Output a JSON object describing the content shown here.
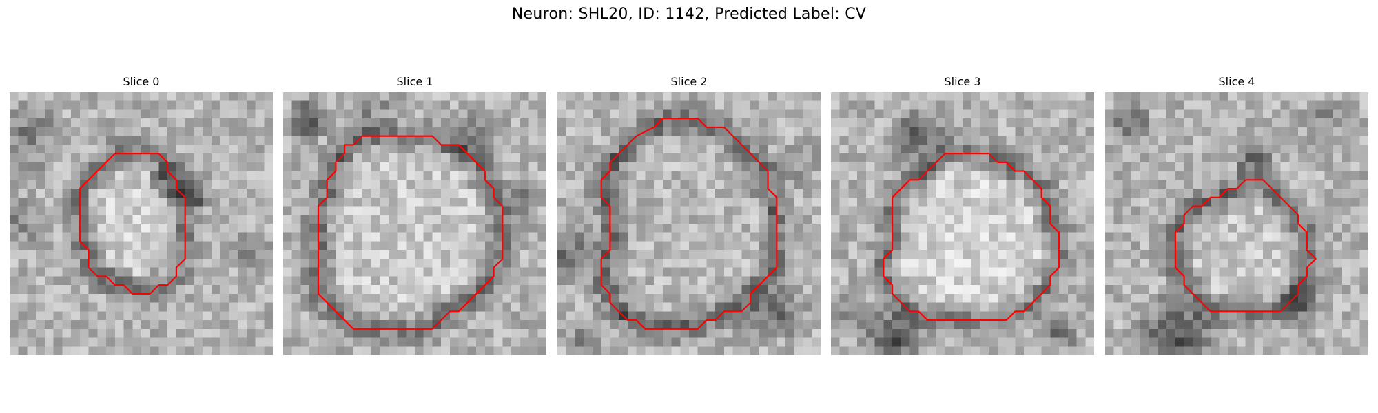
{
  "figure": {
    "title": "Neuron: SHL20, ID: 1142, Predicted Label: CV"
  },
  "panels": [
    {
      "title": "Slice 0",
      "contour_color": "#ff0000",
      "contour": [
        [
          12,
          7
        ],
        [
          17,
          7
        ],
        [
          18,
          8
        ],
        [
          18,
          9
        ],
        [
          19,
          10
        ],
        [
          19,
          11
        ],
        [
          20,
          12
        ],
        [
          20,
          19
        ],
        [
          19,
          20
        ],
        [
          19,
          21
        ],
        [
          18,
          22
        ],
        [
          17,
          22
        ],
        [
          16,
          23
        ],
        [
          14,
          23
        ],
        [
          13,
          22
        ],
        [
          12,
          22
        ],
        [
          11,
          21
        ],
        [
          10,
          21
        ],
        [
          9,
          20
        ],
        [
          9,
          18
        ],
        [
          8,
          17
        ],
        [
          8,
          11
        ],
        [
          9,
          10
        ],
        [
          10,
          9
        ],
        [
          11,
          8
        ],
        [
          12,
          7
        ]
      ]
    },
    {
      "title": "Slice 1",
      "contour_color": "#ff0000",
      "contour": [
        [
          9,
          5
        ],
        [
          17,
          5
        ],
        [
          18,
          6
        ],
        [
          20,
          6
        ],
        [
          21,
          7
        ],
        [
          22,
          8
        ],
        [
          23,
          9
        ],
        [
          23,
          10
        ],
        [
          24,
          11
        ],
        [
          24,
          12
        ],
        [
          25,
          13
        ],
        [
          25,
          19
        ],
        [
          24,
          20
        ],
        [
          24,
          21
        ],
        [
          23,
          22
        ],
        [
          22,
          23
        ],
        [
          21,
          24
        ],
        [
          20,
          25
        ],
        [
          19,
          25
        ],
        [
          18,
          26
        ],
        [
          17,
          27
        ],
        [
          12,
          27
        ],
        [
          8,
          27
        ],
        [
          7,
          26
        ],
        [
          6,
          25
        ],
        [
          5,
          24
        ],
        [
          4,
          23
        ],
        [
          4,
          13
        ],
        [
          5,
          12
        ],
        [
          5,
          10
        ],
        [
          6,
          9
        ],
        [
          6,
          8
        ],
        [
          7,
          7
        ],
        [
          7,
          6
        ],
        [
          8,
          6
        ],
        [
          9,
          5
        ]
      ]
    },
    {
      "title": "Slice 2",
      "contour_color": "#ff0000",
      "contour": [
        [
          12,
          3
        ],
        [
          16,
          3
        ],
        [
          17,
          4
        ],
        [
          19,
          4
        ],
        [
          20,
          5
        ],
        [
          21,
          6
        ],
        [
          22,
          7
        ],
        [
          23,
          8
        ],
        [
          24,
          9
        ],
        [
          24,
          11
        ],
        [
          25,
          12
        ],
        [
          25,
          20
        ],
        [
          24,
          21
        ],
        [
          23,
          22
        ],
        [
          22,
          23
        ],
        [
          22,
          24
        ],
        [
          21,
          25
        ],
        [
          19,
          25
        ],
        [
          18,
          26
        ],
        [
          17,
          26
        ],
        [
          16,
          27
        ],
        [
          10,
          27
        ],
        [
          9,
          26
        ],
        [
          8,
          26
        ],
        [
          7,
          25
        ],
        [
          6,
          24
        ],
        [
          6,
          23
        ],
        [
          5,
          22
        ],
        [
          5,
          19
        ],
        [
          6,
          18
        ],
        [
          6,
          13
        ],
        [
          5,
          12
        ],
        [
          5,
          10
        ],
        [
          6,
          9
        ],
        [
          6,
          8
        ],
        [
          7,
          7
        ],
        [
          8,
          6
        ],
        [
          9,
          5
        ],
        [
          11,
          4
        ],
        [
          12,
          3
        ]
      ]
    },
    {
      "title": "Slice 3",
      "contour_color": "#ff0000",
      "contour": [
        [
          13,
          7
        ],
        [
          18,
          7
        ],
        [
          19,
          8
        ],
        [
          20,
          8
        ],
        [
          21,
          9
        ],
        [
          22,
          9
        ],
        [
          23,
          10
        ],
        [
          24,
          11
        ],
        [
          24,
          12
        ],
        [
          25,
          13
        ],
        [
          25,
          15
        ],
        [
          26,
          16
        ],
        [
          26,
          20
        ],
        [
          25,
          21
        ],
        [
          25,
          22
        ],
        [
          24,
          23
        ],
        [
          23,
          24
        ],
        [
          22,
          25
        ],
        [
          21,
          25
        ],
        [
          20,
          26
        ],
        [
          11,
          26
        ],
        [
          10,
          25
        ],
        [
          9,
          25
        ],
        [
          8,
          24
        ],
        [
          7,
          23
        ],
        [
          7,
          22
        ],
        [
          6,
          21
        ],
        [
          6,
          19
        ],
        [
          7,
          18
        ],
        [
          7,
          12
        ],
        [
          8,
          11
        ],
        [
          9,
          10
        ],
        [
          10,
          10
        ],
        [
          11,
          9
        ],
        [
          12,
          8
        ],
        [
          13,
          7
        ]
      ]
    },
    {
      "title": "Slice 4",
      "contour_color": "#ff0000",
      "contour": [
        [
          16,
          10
        ],
        [
          18,
          10
        ],
        [
          19,
          11
        ],
        [
          20,
          12
        ],
        [
          21,
          13
        ],
        [
          22,
          14
        ],
        [
          22,
          15
        ],
        [
          23,
          16
        ],
        [
          23,
          18
        ],
        [
          24,
          19
        ],
        [
          23,
          20
        ],
        [
          23,
          21
        ],
        [
          22,
          22
        ],
        [
          22,
          23
        ],
        [
          21,
          24
        ],
        [
          20,
          25
        ],
        [
          12,
          25
        ],
        [
          11,
          24
        ],
        [
          10,
          23
        ],
        [
          9,
          22
        ],
        [
          9,
          21
        ],
        [
          8,
          20
        ],
        [
          8,
          16
        ],
        [
          9,
          15
        ],
        [
          9,
          14
        ],
        [
          10,
          13
        ],
        [
          11,
          13
        ],
        [
          12,
          12
        ],
        [
          13,
          12
        ],
        [
          14,
          11
        ],
        [
          15,
          11
        ],
        [
          16,
          10
        ]
      ]
    }
  ]
}
